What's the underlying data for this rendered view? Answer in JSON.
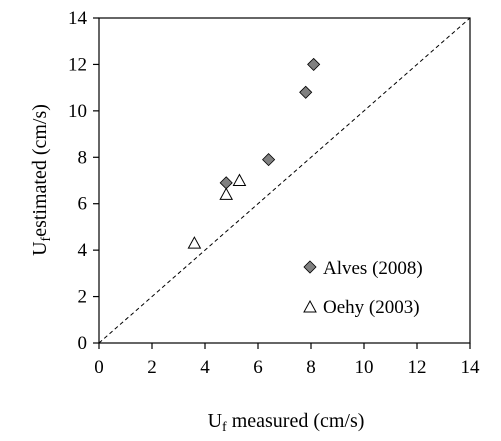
{
  "chart_data": {
    "type": "scatter",
    "xlabel": {
      "main": "U",
      "sub": "f",
      "rest": " measured (cm/s)"
    },
    "ylabel": {
      "main": "U",
      "sub": "f",
      "rest": "estimated (cm/s)"
    },
    "xlim": [
      0,
      14
    ],
    "ylim": [
      0,
      14
    ],
    "xticks": [
      "0",
      "2",
      "4",
      "6",
      "8",
      "10",
      "12",
      "14"
    ],
    "yticks": [
      "0",
      "2",
      "4",
      "6",
      "8",
      "10",
      "12",
      "14"
    ],
    "grid": false,
    "legend_position": "bottom-right",
    "reference_line": {
      "style": "dashed",
      "x": [
        0,
        14
      ],
      "y": [
        0,
        14
      ]
    },
    "series": [
      {
        "name": "Alves (2008)",
        "marker": "diamond",
        "fill": "#808080",
        "points": [
          {
            "x": 4.8,
            "y": 6.9
          },
          {
            "x": 6.4,
            "y": 7.9
          },
          {
            "x": 7.8,
            "y": 10.8
          },
          {
            "x": 8.1,
            "y": 12.0
          }
        ]
      },
      {
        "name": "Oehy (2003)",
        "marker": "triangle-open",
        "fill": "#ffffff",
        "points": [
          {
            "x": 3.6,
            "y": 4.3
          },
          {
            "x": 4.8,
            "y": 6.4
          },
          {
            "x": 5.3,
            "y": 7.0
          }
        ]
      }
    ]
  }
}
